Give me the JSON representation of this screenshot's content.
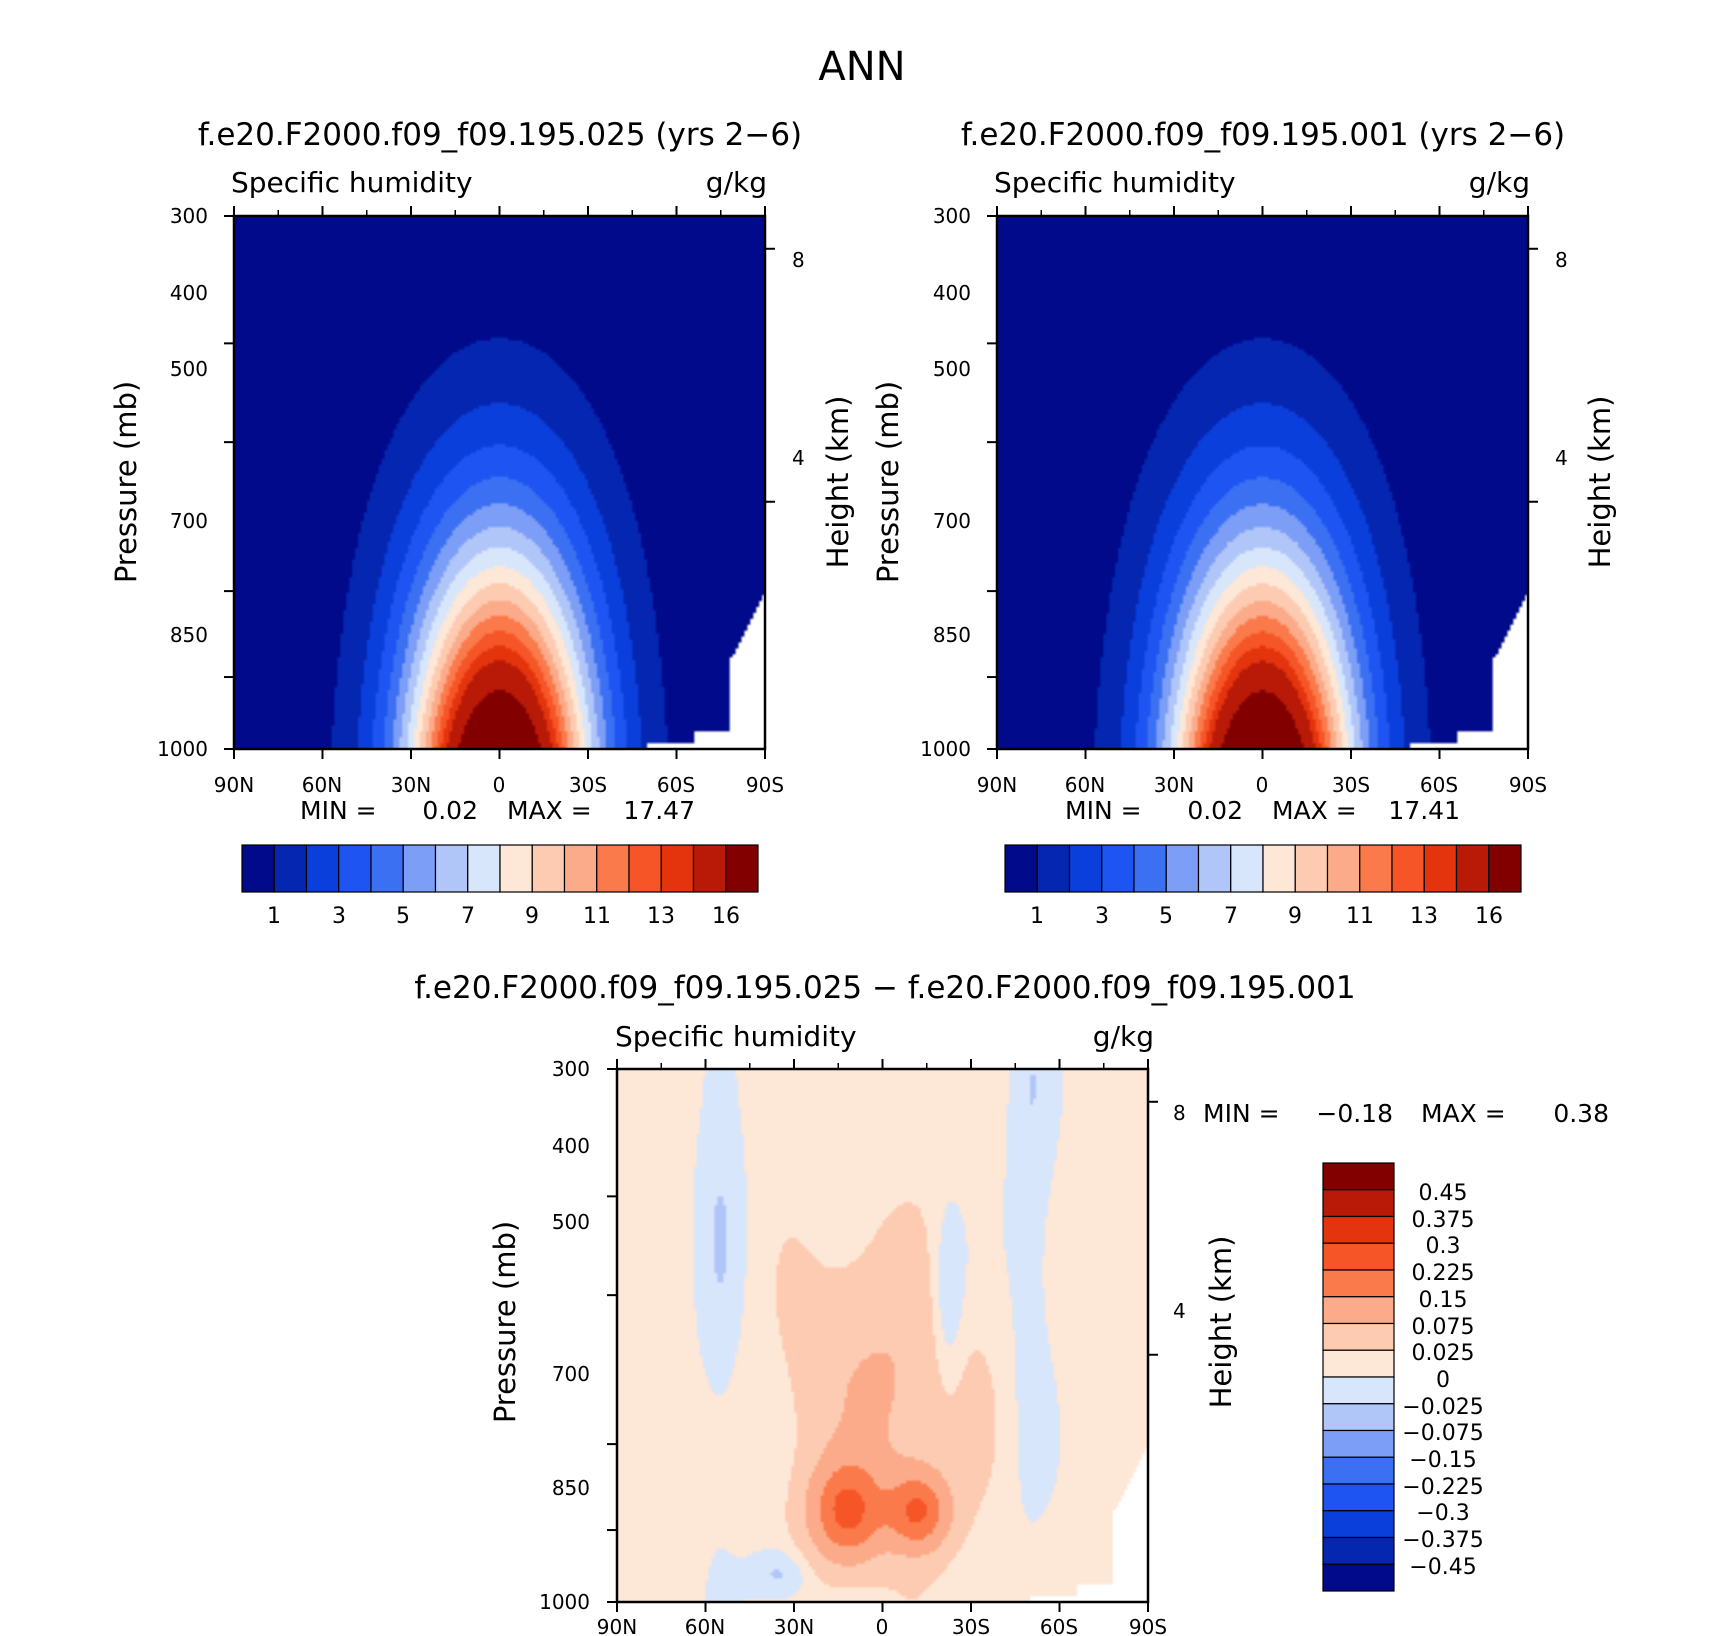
{
  "page_title": "ANN",
  "colormaps": {
    "abs_levels": [
      "#000a8a",
      "#0526b0",
      "#0b3fdb",
      "#1e55f2",
      "#3c70f3",
      "#7d9ef6",
      "#b1c6f8",
      "#d8e6fb",
      "#fde7d7",
      "#fdcbb1",
      "#fcab8a",
      "#fb7a4b",
      "#f65527",
      "#e4340e",
      "#b81a07",
      "#820000"
    ],
    "abs_tick_labels": [
      "1",
      "3",
      "5",
      "7",
      "9",
      "11",
      "13",
      "16"
    ],
    "diff_levels": [
      "#000a8a",
      "#0526b0",
      "#0b3fdb",
      "#1e55f2",
      "#3c70f3",
      "#7d9ef6",
      "#b1c6f8",
      "#d8e6fb",
      "#fde7d7",
      "#fdcbb1",
      "#fcab8a",
      "#fb7a4b",
      "#f65527",
      "#e4340e",
      "#b81a07",
      "#820000"
    ],
    "diff_tick_labels": [
      "-0.45",
      "-0.375",
      "-0.3",
      "-0.225",
      "-0.15",
      "-0.075",
      "-0.025",
      "0",
      "0.025",
      "0.075",
      "0.15",
      "0.225",
      "0.3",
      "0.375",
      "0.45"
    ]
  },
  "chart_data": [
    {
      "type": "heatmap",
      "title": "f.e20.F2000.f09_f09.195.025 (yrs 2-6)",
      "left_subtitle": "Specific humidity",
      "right_subtitle": "g/kg",
      "ylabel": "Pressure (mb)",
      "y2label": "Height (km)",
      "x_tick_labels": [
        "90N",
        "60N",
        "30N",
        "0",
        "30S",
        "60S",
        "90S"
      ],
      "y_tick_labels": [
        "300",
        "400",
        "500",
        "700",
        "850",
        "1000"
      ],
      "y2_tick_labels": [
        "8",
        "4"
      ],
      "xlim": [
        90,
        -90
      ],
      "ylim": [
        1000,
        300
      ],
      "y_scale": "log",
      "min_label": "MIN =",
      "min_value": "0.02",
      "max_label": "MAX =",
      "max_value": "17.47",
      "field": {
        "amplitude": 17.47,
        "tropical_peak_lat": 0
      },
      "colorbar": "horizontal"
    },
    {
      "type": "heatmap",
      "title": "f.e20.F2000.f09_f09.195.001 (yrs 2-6)",
      "left_subtitle": "Specific humidity",
      "right_subtitle": "g/kg",
      "ylabel": "Pressure (mb)",
      "y2label": "Height (km)",
      "x_tick_labels": [
        "90N",
        "60N",
        "30N",
        "0",
        "30S",
        "60S",
        "90S"
      ],
      "y_tick_labels": [
        "300",
        "400",
        "500",
        "700",
        "850",
        "1000"
      ],
      "y2_tick_labels": [
        "8",
        "4"
      ],
      "xlim": [
        90,
        -90
      ],
      "ylim": [
        1000,
        300
      ],
      "y_scale": "log",
      "min_label": "MIN =",
      "min_value": "0.02",
      "max_label": "MAX =",
      "max_value": "17.41",
      "field": {
        "amplitude": 17.41,
        "tropical_peak_lat": 0
      },
      "colorbar": "horizontal"
    },
    {
      "type": "heatmap",
      "title": "f.e20.F2000.f09_f09.195.025 - f.e20.F2000.f09_f09.195.001",
      "left_subtitle": "Specific humidity",
      "right_subtitle": "g/kg",
      "ylabel": "Pressure (mb)",
      "y2label": "Height (km)",
      "x_tick_labels": [
        "90N",
        "60N",
        "30N",
        "0",
        "30S",
        "60S",
        "90S"
      ],
      "y_tick_labels": [
        "300",
        "400",
        "500",
        "700",
        "850",
        "1000"
      ],
      "y2_tick_labels": [
        "8",
        "4"
      ],
      "xlim": [
        90,
        -90
      ],
      "ylim": [
        1000,
        300
      ],
      "y_scale": "log",
      "min_label": "MIN =",
      "min_value": "-0.18",
      "max_label": "MAX =",
      "max_value": "0.38",
      "colorbar": "vertical"
    }
  ]
}
